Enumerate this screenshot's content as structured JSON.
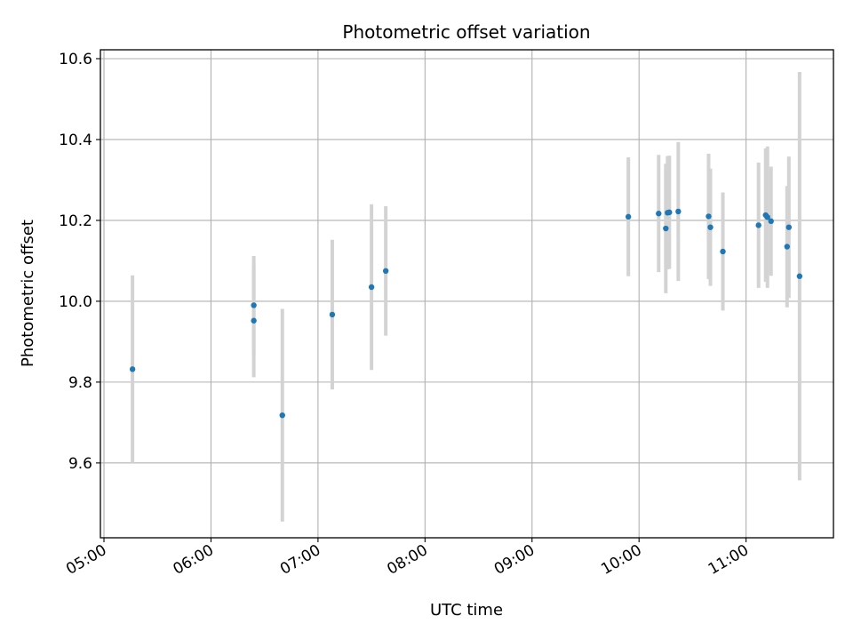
{
  "chart_data": {
    "type": "scatter",
    "title": "Photometric offset variation",
    "xlabel": "UTC time",
    "ylabel": "Photometric offset",
    "x_axis": "time (UTC, hours)",
    "xlim": [
      "04:58",
      "11:49"
    ],
    "ylim": [
      9.415,
      10.622
    ],
    "x_ticks": [
      "05:00",
      "06:00",
      "07:00",
      "08:00",
      "09:00",
      "10:00",
      "11:00"
    ],
    "y_ticks": [
      9.6,
      9.8,
      10.0,
      10.2,
      10.4,
      10.6
    ],
    "y_tick_labels": [
      "9.6",
      "9.8",
      "10.0",
      "10.2",
      "10.4",
      "10.6"
    ],
    "grid": true,
    "colors": {
      "point": "#1f77b4",
      "errorbar": "#d3d3d3",
      "grid": "#b0b0b0"
    },
    "points": [
      {
        "x": "05:16",
        "y": 9.832,
        "yerr": 0.232
      },
      {
        "x": "06:24",
        "y": 9.99,
        "yerr": 0.122
      },
      {
        "x": "06:24",
        "y": 9.952,
        "yerr": 0.14
      },
      {
        "x": "06:40",
        "y": 9.718,
        "yerr": 0.263
      },
      {
        "x": "07:08",
        "y": 9.967,
        "yerr": 0.185
      },
      {
        "x": "07:30",
        "y": 10.035,
        "yerr": 0.205
      },
      {
        "x": "07:38",
        "y": 10.075,
        "yerr": 0.16
      },
      {
        "x": "09:54",
        "y": 10.209,
        "yerr": 0.147
      },
      {
        "x": "10:11",
        "y": 10.217,
        "yerr": 0.145
      },
      {
        "x": "10:15",
        "y": 10.18,
        "yerr": 0.16
      },
      {
        "x": "10:16",
        "y": 10.219,
        "yerr": 0.14
      },
      {
        "x": "10:17",
        "y": 10.22,
        "yerr": 0.14
      },
      {
        "x": "10:22",
        "y": 10.222,
        "yerr": 0.172
      },
      {
        "x": "10:39",
        "y": 10.21,
        "yerr": 0.155
      },
      {
        "x": "10:40",
        "y": 10.183,
        "yerr": 0.145
      },
      {
        "x": "10:47",
        "y": 10.123,
        "yerr": 0.146
      },
      {
        "x": "11:07",
        "y": 10.188,
        "yerr": 0.155
      },
      {
        "x": "11:11",
        "y": 10.213,
        "yerr": 0.165
      },
      {
        "x": "11:12",
        "y": 10.208,
        "yerr": 0.175
      },
      {
        "x": "11:14",
        "y": 10.198,
        "yerr": 0.135
      },
      {
        "x": "11:23",
        "y": 10.135,
        "yerr": 0.15
      },
      {
        "x": "11:24",
        "y": 10.183,
        "yerr": 0.175
      },
      {
        "x": "11:30",
        "y": 10.062,
        "yerr": 0.505
      }
    ]
  }
}
